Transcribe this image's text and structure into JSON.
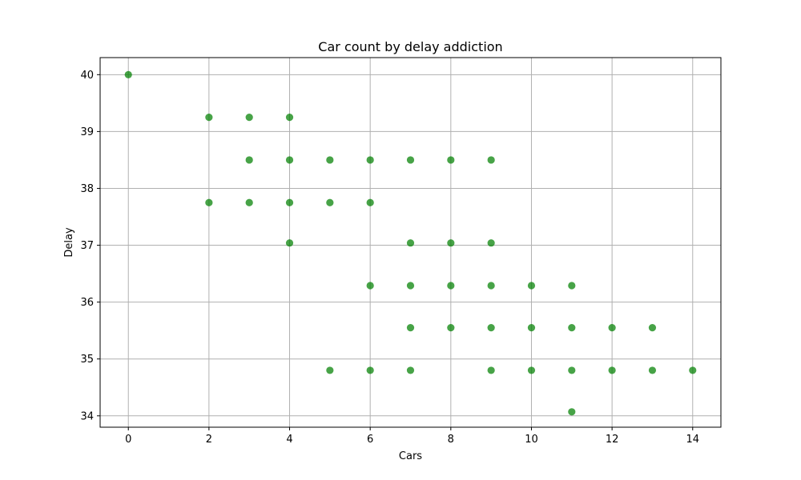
{
  "chart_data": {
    "type": "scatter",
    "title": "Car count by delay addiction",
    "xlabel": "Cars",
    "ylabel": "Delay",
    "xlim": [
      -0.7,
      14.7
    ],
    "ylim": [
      33.8,
      40.3
    ],
    "xticks": [
      0,
      2,
      4,
      6,
      8,
      10,
      12,
      14
    ],
    "yticks": [
      34,
      35,
      36,
      37,
      38,
      39,
      40
    ],
    "grid": true,
    "legend": "none",
    "marker_color": "#008000",
    "series": [
      {
        "points": [
          [
            0,
            40.0
          ],
          [
            2,
            39.25
          ],
          [
            3,
            39.25
          ],
          [
            4,
            39.25
          ],
          [
            3,
            38.5
          ],
          [
            4,
            38.5
          ],
          [
            5,
            38.5
          ],
          [
            6,
            38.5
          ],
          [
            7,
            38.5
          ],
          [
            8,
            38.5
          ],
          [
            9,
            38.5
          ],
          [
            2,
            37.75
          ],
          [
            3,
            37.75
          ],
          [
            4,
            37.75
          ],
          [
            5,
            37.75
          ],
          [
            6,
            37.75
          ],
          [
            4,
            37.04
          ],
          [
            7,
            37.04
          ],
          [
            8,
            37.04
          ],
          [
            9,
            37.04
          ],
          [
            6,
            36.29
          ],
          [
            7,
            36.29
          ],
          [
            8,
            36.29
          ],
          [
            9,
            36.29
          ],
          [
            10,
            36.29
          ],
          [
            11,
            36.29
          ],
          [
            7,
            35.55
          ],
          [
            8,
            35.55
          ],
          [
            9,
            35.55
          ],
          [
            10,
            35.55
          ],
          [
            11,
            35.55
          ],
          [
            12,
            35.55
          ],
          [
            13,
            35.55
          ],
          [
            5,
            34.8
          ],
          [
            6,
            34.8
          ],
          [
            7,
            34.8
          ],
          [
            9,
            34.8
          ],
          [
            10,
            34.8
          ],
          [
            11,
            34.8
          ],
          [
            12,
            34.8
          ],
          [
            13,
            34.8
          ],
          [
            14,
            34.8
          ],
          [
            11,
            34.07
          ]
        ]
      }
    ]
  }
}
